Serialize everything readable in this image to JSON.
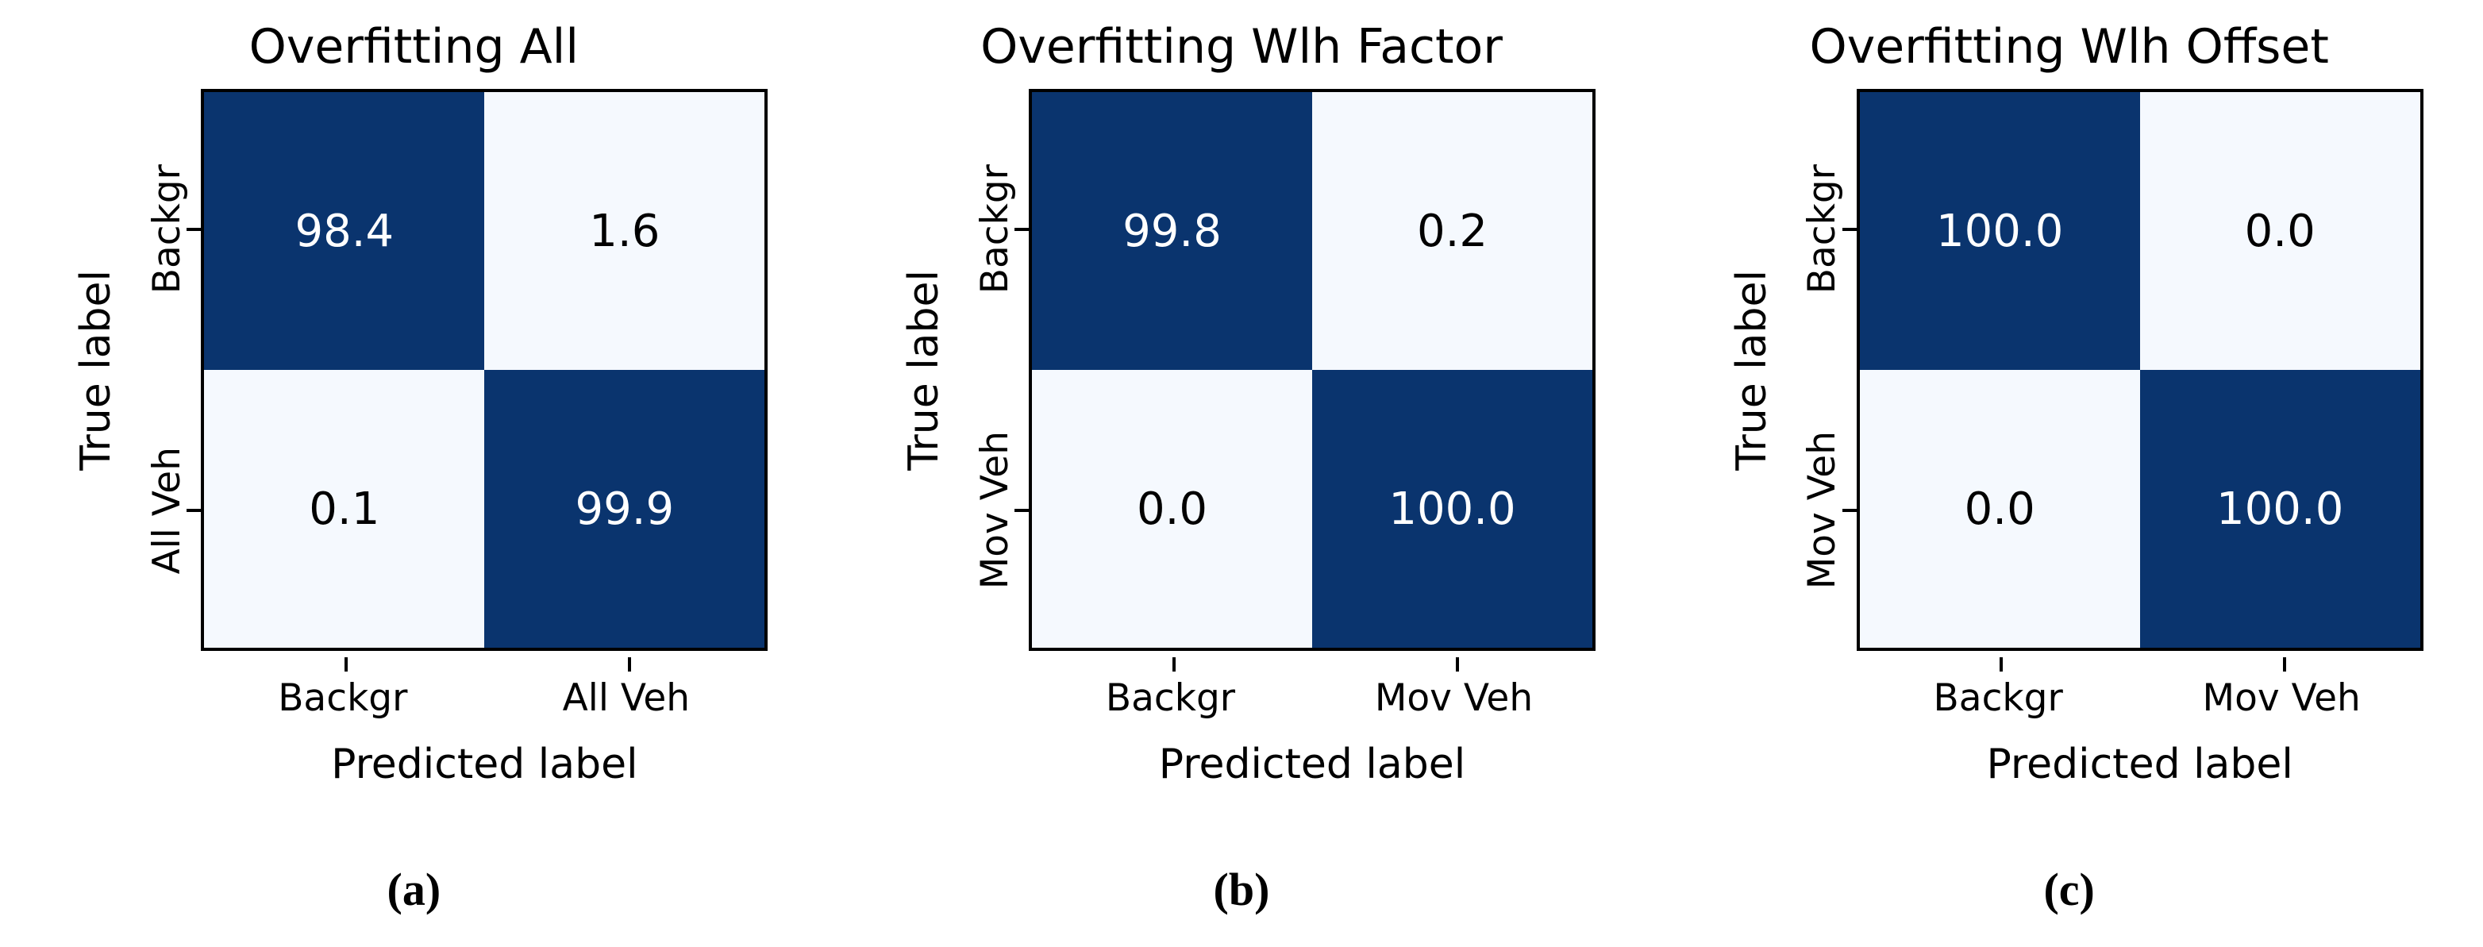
{
  "figure": {
    "type": "confusion-matrix-figure",
    "background": "#ffffff"
  },
  "colors": {
    "cell_high": "#0a346e",
    "cell_low": "#f5f9fe",
    "text_on_high": "#ffffff",
    "text_on_low": "#000000",
    "border": "#000000"
  },
  "chart_data": [
    {
      "type": "heatmap",
      "title": "Overfitting All",
      "caption": "(a)",
      "xlabel": "Predicted label",
      "ylabel": "True label",
      "x_tick_labels": [
        "Backgr",
        "All Veh"
      ],
      "y_tick_labels": [
        "Backgr",
        "All Veh"
      ],
      "values": [
        [
          98.4,
          1.6
        ],
        [
          0.1,
          99.9
        ]
      ],
      "cell_text": [
        [
          "98.4",
          "1.6"
        ],
        [
          "0.1",
          "99.9"
        ]
      ],
      "value_range": [
        0,
        100
      ],
      "colormap": "Blues",
      "grid": false,
      "legend": "none"
    },
    {
      "type": "heatmap",
      "title": "Overfitting Wlh Factor",
      "caption": "(b)",
      "xlabel": "Predicted label",
      "ylabel": "True label",
      "x_tick_labels": [
        "Backgr",
        "Mov Veh"
      ],
      "y_tick_labels": [
        "Backgr",
        "Mov Veh"
      ],
      "values": [
        [
          99.8,
          0.2
        ],
        [
          0.0,
          100.0
        ]
      ],
      "cell_text": [
        [
          "99.8",
          "0.2"
        ],
        [
          "0.0",
          "100.0"
        ]
      ],
      "value_range": [
        0,
        100
      ],
      "colormap": "Blues",
      "grid": false,
      "legend": "none"
    },
    {
      "type": "heatmap",
      "title": "Overfitting Wlh Offset",
      "caption": "(c)",
      "xlabel": "Predicted label",
      "ylabel": "True label",
      "x_tick_labels": [
        "Backgr",
        "Mov Veh"
      ],
      "y_tick_labels": [
        "Backgr",
        "Mov Veh"
      ],
      "values": [
        [
          100.0,
          0.0
        ],
        [
          0.0,
          100.0
        ]
      ],
      "cell_text": [
        [
          "100.0",
          "0.0"
        ],
        [
          "0.0",
          "100.0"
        ]
      ],
      "value_range": [
        0,
        100
      ],
      "colormap": "Blues",
      "grid": false,
      "legend": "none"
    }
  ]
}
